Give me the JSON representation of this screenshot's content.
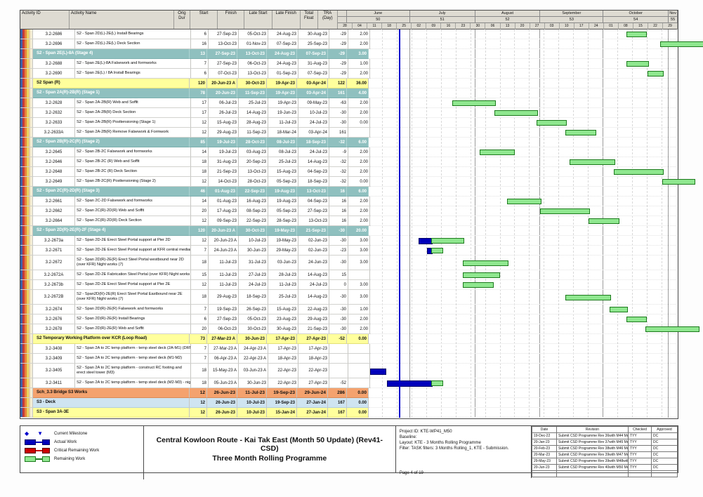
{
  "report": {
    "title_line1": "Central Kowloon Route - Kai Tak East (Month 50 Update) (Rev41- CSD)",
    "title_line2": "Three Month Rolling Programme",
    "page": "Page 4 of 19"
  },
  "table": {
    "columns": [
      "Activity ID",
      "Activity Name",
      "Orig Dur",
      "Start",
      "Finish",
      "Late Start",
      "Late Finish",
      "Total Float",
      "TRA (Day)"
    ],
    "rows": [
      {
        "type": "activity",
        "id": "3.2-2686",
        "name": "S2 - Span 2D(L)-2E(L) Install Bearings",
        "dur": "6",
        "start": "27-Sep-23",
        "finish": "05-Oct-23",
        "late_start": "24-Aug-23",
        "late_finish": "30-Aug-23",
        "total_float": "-29",
        "tra": "2.00"
      },
      {
        "type": "activity",
        "id": "3.2-2696",
        "name": "S2 - Span 2D(L)-2E(L) Deck Section",
        "dur": "16",
        "start": "13-Oct-23",
        "finish": "01-Nov-23",
        "late_start": "07-Sep-23",
        "late_finish": "25-Sep-23",
        "total_float": "-29",
        "tra": "2.00"
      },
      {
        "type": "group",
        "style": "teal",
        "name": "S2 - Span 2E(L)-8A (Stage 4)",
        "dur": "13",
        "start": "27-Sep-23",
        "finish": "13-Oct-23",
        "late_start": "24-Aug-23",
        "late_finish": "07-Sep-23",
        "total_float": "-29",
        "tra": "3.00"
      },
      {
        "type": "activity",
        "id": "3.2-2688",
        "name": "S2 - Span 2E(L)-8A Falsework and formworks",
        "dur": "7",
        "start": "27-Sep-23",
        "finish": "06-Oct-23",
        "late_start": "24-Aug-23",
        "late_finish": "31-Aug-23",
        "total_float": "-29",
        "tra": "1.00"
      },
      {
        "type": "activity",
        "id": "3.2-2690",
        "name": "S2 - Span 2E(L) / 8A Install Bearings",
        "dur": "6",
        "start": "07-Oct-23",
        "finish": "13-Oct-23",
        "late_start": "01-Sep-23",
        "late_finish": "07-Sep-23",
        "total_float": "-29",
        "tra": "2.00"
      },
      {
        "type": "group",
        "style": "yellow",
        "name": "S2 Span (R)",
        "dur": "120",
        "start": "20-Jun-23 A",
        "finish": "30-Oct-23",
        "late_start": "19-Apr-23",
        "late_finish": "03-Apr-24",
        "total_float": "122",
        "tra": "36.00"
      },
      {
        "type": "group",
        "style": "teal",
        "name": "S2 - Span 2A(R)-2B(R) (Stage 1)",
        "dur": "78",
        "start": "20-Jun-23",
        "finish": "11-Sep-23",
        "late_start": "19-Apr-23",
        "late_finish": "03-Apr-24",
        "total_float": "161",
        "tra": "4.00"
      },
      {
        "type": "activity",
        "id": "3.2-2628",
        "name": "S2 - Span 2A-2B(R) Web and Soffit",
        "dur": "17",
        "start": "06-Jul-23",
        "finish": "25-Jul-23",
        "late_start": "19-Apr-23",
        "late_finish": "09-May-23",
        "total_float": "-63",
        "tra": "2.00"
      },
      {
        "type": "activity",
        "id": "3.2-2632",
        "name": "S2 - Span 2A-2B(R) Deck Section",
        "dur": "17",
        "start": "26-Jul-23",
        "finish": "14-Aug-23",
        "late_start": "19-Jun-23",
        "late_finish": "10-Jul-23",
        "total_float": "-30",
        "tra": "2.00"
      },
      {
        "type": "activity",
        "id": "3.2-2633",
        "name": "S2 - Span 2A-2B(R) Posttensioning (Stage 1)",
        "dur": "12",
        "start": "15-Aug-23",
        "finish": "28-Aug-23",
        "late_start": "11-Jul-23",
        "late_finish": "24-Jul-23",
        "total_float": "-30",
        "tra": "0.00"
      },
      {
        "type": "activity",
        "id": "3.2-2633A",
        "name": "S2 - Span 2A-2B(R) Remove Falsework & Formwork",
        "dur": "12",
        "start": "29-Aug-23",
        "finish": "11-Sep-23",
        "late_start": "18-Mar-24",
        "late_finish": "03-Apr-24",
        "total_float": "161",
        "tra": ""
      },
      {
        "type": "group",
        "style": "teal",
        "name": "S2 - Span 2B(R)-2C(R) (Stage 2)",
        "dur": "85",
        "start": "19-Jul-23",
        "finish": "28-Oct-23",
        "late_start": "08-Jul-23",
        "late_finish": "18-Sep-23",
        "total_float": "-32",
        "tra": "6.00"
      },
      {
        "type": "activity",
        "id": "3.2-2645",
        "name": "S2 - Span 2B-2C Falsework and formworks",
        "dur": "14",
        "start": "19-Jul-23",
        "finish": "03-Aug-23",
        "late_start": "08-Jul-23",
        "late_finish": "24-Jul-23",
        "total_float": "-9",
        "tra": "2.00"
      },
      {
        "type": "activity",
        "id": "3.2-2646",
        "name": "S2 - Span 2B-2C (R) Web and Soffit",
        "dur": "18",
        "start": "31-Aug-23",
        "finish": "20-Sep-23",
        "late_start": "25-Jul-23",
        "late_finish": "14-Aug-23",
        "total_float": "-32",
        "tra": "2.00"
      },
      {
        "type": "activity",
        "id": "3.2-2648",
        "name": "S2 - Span 2B-2C (R) Deck Section",
        "dur": "18",
        "start": "21-Sep-23",
        "finish": "13-Oct-23",
        "late_start": "15-Aug-23",
        "late_finish": "04-Sep-23",
        "total_float": "-32",
        "tra": "2.00"
      },
      {
        "type": "activity",
        "id": "3.2-2649",
        "name": "S2 - Span 2B-2C(R) Posttensioning (Stage 2)",
        "dur": "12",
        "start": "14-Oct-23",
        "finish": "28-Oct-23",
        "late_start": "05-Sep-23",
        "late_finish": "18-Sep-23",
        "total_float": "-32",
        "tra": "0.00"
      },
      {
        "type": "group",
        "style": "teal",
        "name": "S2 - Span 2C(R)-2D(R) (Stage 3)",
        "dur": "46",
        "start": "01-Aug-23",
        "finish": "22-Sep-23",
        "late_start": "19-Aug-23",
        "late_finish": "13-Oct-23",
        "total_float": "16",
        "tra": "6.00"
      },
      {
        "type": "activity",
        "id": "3.2-2661",
        "name": "S2 - Span 2C-2D Falsework and formworks",
        "dur": "14",
        "start": "01-Aug-23",
        "finish": "16-Aug-23",
        "late_start": "19-Aug-23",
        "late_finish": "04-Sep-23",
        "total_float": "16",
        "tra": "2.00"
      },
      {
        "type": "activity",
        "id": "3.2-2662",
        "name": "S2 - Span 2C(R)-2D(R) Web and Soffit",
        "dur": "20",
        "start": "17-Aug-23",
        "finish": "08-Sep-23",
        "late_start": "05-Sep-23",
        "late_finish": "27-Sep-23",
        "total_float": "16",
        "tra": "2.00"
      },
      {
        "type": "activity",
        "id": "3.2-2664",
        "name": "S2 - Span 2C(R)-2D(R) Deck Section",
        "dur": "12",
        "start": "09-Sep-23",
        "finish": "22-Sep-23",
        "late_start": "28-Sep-23",
        "late_finish": "13-Oct-23",
        "total_float": "16",
        "tra": "2.00"
      },
      {
        "type": "group",
        "style": "teal",
        "name": "S2 - Span 2D(R)-2E(R)-2F (Stage 4)",
        "dur": "120",
        "start": "20-Jun-23 A",
        "finish": "30-Oct-23",
        "late_start": "19-May-23",
        "late_finish": "21-Sep-23",
        "total_float": "-30",
        "tra": "20.00"
      },
      {
        "type": "activity",
        "id": "3.2-2673a",
        "name": "S2 - Span 2D-2E Erect Steel Portal support at Pier 2D",
        "dur": "12",
        "start": "20-Jun-23 A",
        "finish": "10-Jul-23",
        "late_start": "19-May-23",
        "late_finish": "02-Jun-23",
        "total_float": "-30",
        "tra": "3.00"
      },
      {
        "type": "activity",
        "id": "3.2-2671",
        "name": "S2 - Span 2D-2E Erect Steel Portal support at KFR central median Night works",
        "dur": "7",
        "start": "24-Jun-23 A",
        "finish": "30-Jun-23",
        "late_start": "29-May-23",
        "late_finish": "02-Jun-23",
        "total_float": "-23",
        "tra": "3.00"
      },
      {
        "type": "activity",
        "id": "3.2-2672",
        "name": "S2 - Span 2D(R)-2E(R) Erect Steel Portal westbound near 2D (over KFR) Night works (7)",
        "dur": "18",
        "start": "11-Jul-23",
        "finish": "31-Jul-23",
        "late_start": "03-Jun-23",
        "late_finish": "24-Jun-23",
        "total_float": "-30",
        "tra": "3.00"
      },
      {
        "type": "activity",
        "id": "3.2-2672A",
        "name": "S2 - Span 2D-2E Fabrication Steel Portal (over KFR) Night works (7)",
        "dur": "15",
        "start": "11-Jul-23",
        "finish": "27-Jul-23",
        "late_start": "28-Jul-23",
        "late_finish": "14-Aug-23",
        "total_float": "15",
        "tra": ""
      },
      {
        "type": "activity",
        "id": "3.2-2673b",
        "name": "S2 - Span 2D-2E Erect Steel Portal support at Pier 2E",
        "dur": "12",
        "start": "11-Jul-23",
        "finish": "24-Jul-23",
        "late_start": "11-Jul-23",
        "late_finish": "24-Jul-23",
        "total_float": "0",
        "tra": "3.00"
      },
      {
        "type": "activity",
        "id": "3.2-2672B",
        "name": "S2 - Span2D(R)-2E(R) Erect Steel Portal Eastbound near 2E (over KFR) Night works (7)",
        "dur": "18",
        "start": "29-Aug-23",
        "finish": "18-Sep-23",
        "late_start": "25-Jul-23",
        "late_finish": "14-Aug-23",
        "total_float": "-30",
        "tra": "3.00"
      },
      {
        "type": "activity",
        "id": "3.2-2674",
        "name": "S2 - Span 2D(R)-2E(R) Falsework and formworks",
        "dur": "7",
        "start": "19-Sep-23",
        "finish": "26-Sep-23",
        "late_start": "15-Aug-23",
        "late_finish": "22-Aug-23",
        "total_float": "-30",
        "tra": "1.00"
      },
      {
        "type": "activity",
        "id": "3.2-2676",
        "name": "S2 - Span 2D(R)-2E(R) Install Bearings",
        "dur": "6",
        "start": "27-Sep-23",
        "finish": "05-Oct-23",
        "late_start": "23-Aug-23",
        "late_finish": "29-Aug-23",
        "total_float": "-30",
        "tra": "2.00"
      },
      {
        "type": "activity",
        "id": "3.2-2678",
        "name": "S2 - Span 2D(R)-2E(R) Web and Soffit",
        "dur": "20",
        "start": "06-Oct-23",
        "finish": "30-Oct-23",
        "late_start": "30-Aug-23",
        "late_finish": "21-Sep-23",
        "total_float": "-30",
        "tra": "2.00"
      },
      {
        "type": "group",
        "style": "yellow",
        "name": "S2 Temporary Working Platform over KCR (Loop Road)",
        "dur": "73",
        "start": "27-Mar-23 A",
        "finish": "30-Jun-23",
        "late_start": "17-Apr-23",
        "late_finish": "27-Apr-23",
        "total_float": "-52",
        "tra": "0.00"
      },
      {
        "type": "activity",
        "id": "3.2-3408",
        "name": "S2 - Span 2A to 2C temp platform - temp steel deck (2A-M1) (DRM)",
        "dur": "7",
        "start": "27-Mar-23 A",
        "finish": "24-Apr-23 A",
        "late_start": "17-Apr-23",
        "late_finish": "17-Apr-23",
        "total_float": "",
        "tra": ""
      },
      {
        "type": "activity",
        "id": "3.2-3409",
        "name": "S2 - Span 2A to 2C temp platform - temp steel deck (M1-M2)",
        "dur": "7",
        "start": "06-Apr-23 A",
        "finish": "22-Apr-23 A",
        "late_start": "18-Apr-23",
        "late_finish": "18-Apr-23",
        "total_float": "",
        "tra": ""
      },
      {
        "type": "activity",
        "id": "3.2-3405",
        "name": "S2 - Span 2A to 2C temp platform - construct RC footing and erect steel tower (M3)",
        "dur": "18",
        "start": "15-May-23 A",
        "finish": "03-Jun-23 A",
        "late_start": "22-Apr-23",
        "late_finish": "22-Apr-23",
        "total_float": "",
        "tra": ""
      },
      {
        "type": "activity",
        "id": "3.2-3411",
        "name": "S2 - Span 2A to 2C temp platform - temp steel deck (M2-M3) - nightwork",
        "dur": "18",
        "start": "05-Jun-23 A",
        "finish": "30-Jun-23",
        "late_start": "22-Apr-23",
        "late_finish": "27-Apr-23",
        "total_float": "-52",
        "tra": ""
      },
      {
        "type": "group",
        "style": "orange",
        "name": "Sch_3.3 Bridge S3 Works",
        "dur": "12",
        "start": "26-Jun-23",
        "finish": "11-Jul-23",
        "late_start": "19-Sep-23",
        "late_finish": "29-Jun-24",
        "total_float": "286",
        "tra": "0.00"
      },
      {
        "type": "group",
        "style": "blue",
        "name": "S3 - Deck",
        "dur": "12",
        "start": "26-Jun-23",
        "finish": "10-Jul-23",
        "late_start": "19-Sep-23",
        "late_finish": "27-Jan-24",
        "total_float": "167",
        "tra": "0.00"
      },
      {
        "type": "group",
        "style": "yellow",
        "name": "S3 - Span 3A-3E",
        "dur": "12",
        "start": "26-Jun-23",
        "finish": "10-Jul-23",
        "late_start": "15-Jan-24",
        "late_finish": "27-Jan-24",
        "total_float": "167",
        "tra": "0.00"
      }
    ]
  },
  "timeline": {
    "start": "28-May-23",
    "end": "05-Nov-23",
    "data_date": "26-Jun-23",
    "months": [
      {
        "label": "June",
        "num": "50"
      },
      {
        "label": "July",
        "num": "51"
      },
      {
        "label": "August",
        "num": "52"
      },
      {
        "label": "September",
        "num": "53"
      },
      {
        "label": "October",
        "num": "54"
      },
      {
        "label": "Nov",
        "num": "55"
      }
    ],
    "weeks": [
      "28",
      "04",
      "11",
      "18",
      "25",
      "02",
      "09",
      "16",
      "23",
      "30",
      "06",
      "13",
      "20",
      "27",
      "03",
      "10",
      "17",
      "24",
      "01",
      "08",
      "15",
      "22",
      "29"
    ]
  },
  "chart_data": {
    "type": "bar",
    "variant": "gantt",
    "title": "Three Month Rolling Programme - activity bars (green = Remaining Work, blue = Actual Work)",
    "x_axis": {
      "start": "28-May-23",
      "end": "05-Nov-23",
      "unit": "week",
      "data_date": "26-Jun-23"
    },
    "legend_position": "footer-left",
    "bars": [
      {
        "id": "3.2-2686",
        "start": "27-Sep-23",
        "finish": "05-Oct-23",
        "status": "planned"
      },
      {
        "id": "3.2-2696",
        "start": "13-Oct-23",
        "finish": "01-Nov-23",
        "status": "planned"
      },
      {
        "id": "3.2-2688",
        "start": "27-Sep-23",
        "finish": "06-Oct-23",
        "status": "planned"
      },
      {
        "id": "3.2-2690",
        "start": "07-Oct-23",
        "finish": "13-Oct-23",
        "status": "planned"
      },
      {
        "id": "3.2-2628",
        "start": "06-Jul-23",
        "finish": "25-Jul-23",
        "status": "planned"
      },
      {
        "id": "3.2-2632",
        "start": "26-Jul-23",
        "finish": "14-Aug-23",
        "status": "planned"
      },
      {
        "id": "3.2-2633",
        "start": "15-Aug-23",
        "finish": "28-Aug-23",
        "status": "planned"
      },
      {
        "id": "3.2-2633A",
        "start": "29-Aug-23",
        "finish": "11-Sep-23",
        "status": "planned"
      },
      {
        "id": "3.2-2645",
        "start": "19-Jul-23",
        "finish": "03-Aug-23",
        "status": "planned"
      },
      {
        "id": "3.2-2646",
        "start": "31-Aug-23",
        "finish": "20-Sep-23",
        "status": "planned"
      },
      {
        "id": "3.2-2648",
        "start": "21-Sep-23",
        "finish": "13-Oct-23",
        "status": "planned"
      },
      {
        "id": "3.2-2649",
        "start": "14-Oct-23",
        "finish": "28-Oct-23",
        "status": "planned"
      },
      {
        "id": "3.2-2661",
        "start": "01-Aug-23",
        "finish": "16-Aug-23",
        "status": "planned"
      },
      {
        "id": "3.2-2662",
        "start": "17-Aug-23",
        "finish": "08-Sep-23",
        "status": "planned"
      },
      {
        "id": "3.2-2664",
        "start": "09-Sep-23",
        "finish": "22-Sep-23",
        "status": "planned"
      },
      {
        "id": "3.2-2673a",
        "start": "20-Jun-23",
        "finish": "10-Jul-23",
        "status": "in-progress"
      },
      {
        "id": "3.2-2671",
        "start": "24-Jun-23",
        "finish": "30-Jun-23",
        "status": "in-progress"
      },
      {
        "id": "3.2-2672",
        "start": "11-Jul-23",
        "finish": "31-Jul-23",
        "status": "planned"
      },
      {
        "id": "3.2-2672A",
        "start": "11-Jul-23",
        "finish": "27-Jul-23",
        "status": "planned"
      },
      {
        "id": "3.2-2673b",
        "start": "11-Jul-23",
        "finish": "24-Jul-23",
        "status": "planned"
      },
      {
        "id": "3.2-2672B",
        "start": "29-Aug-23",
        "finish": "18-Sep-23",
        "status": "planned"
      },
      {
        "id": "3.2-2674",
        "start": "19-Sep-23",
        "finish": "26-Sep-23",
        "status": "planned"
      },
      {
        "id": "3.2-2676",
        "start": "27-Sep-23",
        "finish": "05-Oct-23",
        "status": "planned"
      },
      {
        "id": "3.2-2678",
        "start": "06-Oct-23",
        "finish": "30-Oct-23",
        "status": "planned"
      },
      {
        "id": "3.2-3405",
        "start": "15-May-23",
        "finish": "03-Jun-23",
        "status": "completed"
      },
      {
        "id": "3.2-3411",
        "start": "05-Jun-23",
        "finish": "30-Jun-23",
        "status": "in-progress"
      }
    ]
  },
  "footer": {
    "legend": [
      {
        "symbol": "milestone",
        "label": "Current Milestone"
      },
      {
        "symbol": "actual",
        "label": "Actual Work"
      },
      {
        "symbol": "critical",
        "label": "Critical Remaining Work"
      },
      {
        "symbol": "remaining",
        "label": "Remaining Work"
      }
    ],
    "project_info": [
      "Project ID: KTE-WP41_M50",
      "Baseline:",
      "Layout: KTE - 3 Months Rolling Programme",
      "Filter: TASK filters: 3 Months Rolling_1, KTE - Submission."
    ],
    "revisions": {
      "columns": [
        "Date",
        "Revision",
        "Checked",
        "Approved"
      ],
      "rows": [
        [
          "19-Dec-22",
          "Submit CSD Programme Rev 36with M44 Mon..",
          "TYY",
          "DC"
        ],
        [
          "20-Jan-23",
          "Submit CSD Programme Rev 37with M45 Mon..",
          "TYY",
          "DC"
        ],
        [
          "20-Feb-23",
          "Submit CSD Programme Rev 38with M46 Mon..",
          "TYY",
          "DC"
        ],
        [
          "20-Mar-23",
          "Submit CSD Programme Rev 39with M47 Mon..",
          "TYY",
          "DC"
        ],
        [
          "29-May-23",
          "Submit CSD Programme Rev 39with M48with..",
          "TYY",
          "DC"
        ],
        [
          "20-Jun-23",
          "Submit CSD Programme Rev 40with M50 Mon..",
          "TYY",
          "DC"
        ]
      ]
    }
  },
  "colors": {
    "group_teal": "#8fc0bf",
    "group_yellow": "#ffff9c",
    "group_orange": "#f4a26e",
    "group_blue": "#cfe4f1",
    "bar_remaining_fill": "#8fe78f",
    "bar_remaining_border": "#1d7a1d",
    "bar_actual": "#0000bb",
    "bar_critical": "#cc0000",
    "data_date_line": "#0000cc"
  }
}
